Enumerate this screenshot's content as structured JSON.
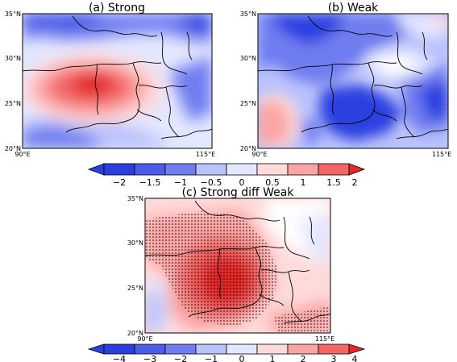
{
  "panels": [
    {
      "id": "a",
      "title": "(a) Strong",
      "lat_ticks": [
        "35°N",
        "30°N",
        "25°N",
        "20°N"
      ],
      "lon_ticks": [
        "90°E",
        "115°E"
      ]
    },
    {
      "id": "b",
      "title": "(b) Weak",
      "lat_ticks": [
        "35°N",
        "30°N",
        "25°N",
        "20°N"
      ],
      "lon_ticks": [
        "90°E",
        "115°E"
      ]
    },
    {
      "id": "c",
      "title": "(c) Strong diff Weak",
      "lat_ticks": [
        "35°N",
        "30°N",
        "25°N",
        "20°N"
      ],
      "lon_ticks": [
        "90°E",
        "115°E"
      ]
    }
  ],
  "colorbar_top": {
    "labels": [
      "−2",
      "−1.5",
      "−1",
      "−0.5",
      "0",
      "0.5",
      "1",
      "1.5",
      "2"
    ]
  },
  "colorbar_bottom": {
    "labels": [
      "−4",
      "−3",
      "−2",
      "−1",
      "0",
      "1",
      "2",
      "3",
      "4"
    ]
  },
  "palette": {
    "dark_blue": "#2b3fe0",
    "mid_blue": "#6f7df0",
    "light_blue": "#b9c2fb",
    "pale_blue": "#e3e7ff",
    "white": "#ffffff",
    "pale_red": "#ffdada",
    "light_red": "#fba4a4",
    "mid_red": "#f36666",
    "dark_red": "#e42828"
  }
}
